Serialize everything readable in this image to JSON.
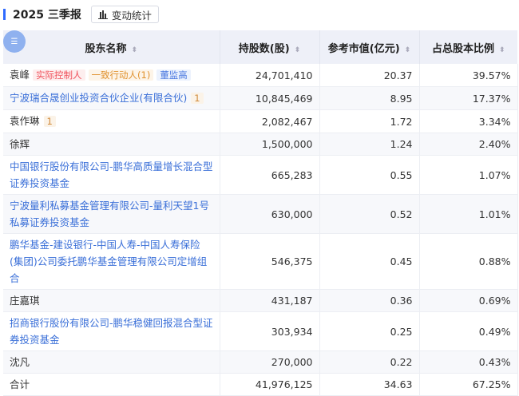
{
  "header": {
    "title": "2025 三季报",
    "stats_button": "变动统计"
  },
  "columns": [
    "股东名称",
    "持股数(股)",
    "参考市值(亿元)",
    "占总股本比例"
  ],
  "rows": [
    {
      "name": "袁峰",
      "link": false,
      "tags": [
        "实际控制人",
        "一致行动人(1)",
        "董监高"
      ],
      "badge": null,
      "shares": "24,701,410",
      "value": "20.37",
      "ratio": "39.57%"
    },
    {
      "name": "宁波瑞合晟创业投资合伙企业(有限合伙)",
      "link": true,
      "tags": [],
      "badge": "1",
      "shares": "10,845,469",
      "value": "8.95",
      "ratio": "17.37%"
    },
    {
      "name": "袁作琳",
      "link": false,
      "tags": [],
      "badge": "1",
      "shares": "2,082,467",
      "value": "1.72",
      "ratio": "3.34%"
    },
    {
      "name": "徐辉",
      "link": false,
      "tags": [],
      "badge": null,
      "shares": "1,500,000",
      "value": "1.24",
      "ratio": "2.40%"
    },
    {
      "name": "中国银行股份有限公司-鹏华高质量增长混合型证券投资基金",
      "link": true,
      "tags": [],
      "badge": null,
      "shares": "665,283",
      "value": "0.55",
      "ratio": "1.07%"
    },
    {
      "name": "宁波量利私募基金管理有限公司-量利天望1号私募证券投资基金",
      "link": true,
      "tags": [],
      "badge": null,
      "shares": "630,000",
      "value": "0.52",
      "ratio": "1.01%"
    },
    {
      "name": "鹏华基金-建设银行-中国人寿-中国人寿保险(集团)公司委托鹏华基金管理有限公司定增组合",
      "link": true,
      "tags": [],
      "badge": null,
      "shares": "546,375",
      "value": "0.45",
      "ratio": "0.88%"
    },
    {
      "name": "庄嘉琪",
      "link": false,
      "tags": [],
      "badge": null,
      "shares": "431,187",
      "value": "0.36",
      "ratio": "0.69%"
    },
    {
      "name": "招商银行股份有限公司-鹏华稳健回报混合型证券投资基金",
      "link": true,
      "tags": [],
      "badge": null,
      "shares": "303,934",
      "value": "0.25",
      "ratio": "0.49%"
    },
    {
      "name": "沈凡",
      "link": false,
      "tags": [],
      "badge": null,
      "shares": "270,000",
      "value": "0.22",
      "ratio": "0.43%"
    }
  ],
  "total": {
    "name": "合计",
    "shares": "41,976,125",
    "value": "34.63",
    "ratio": "67.25%"
  }
}
